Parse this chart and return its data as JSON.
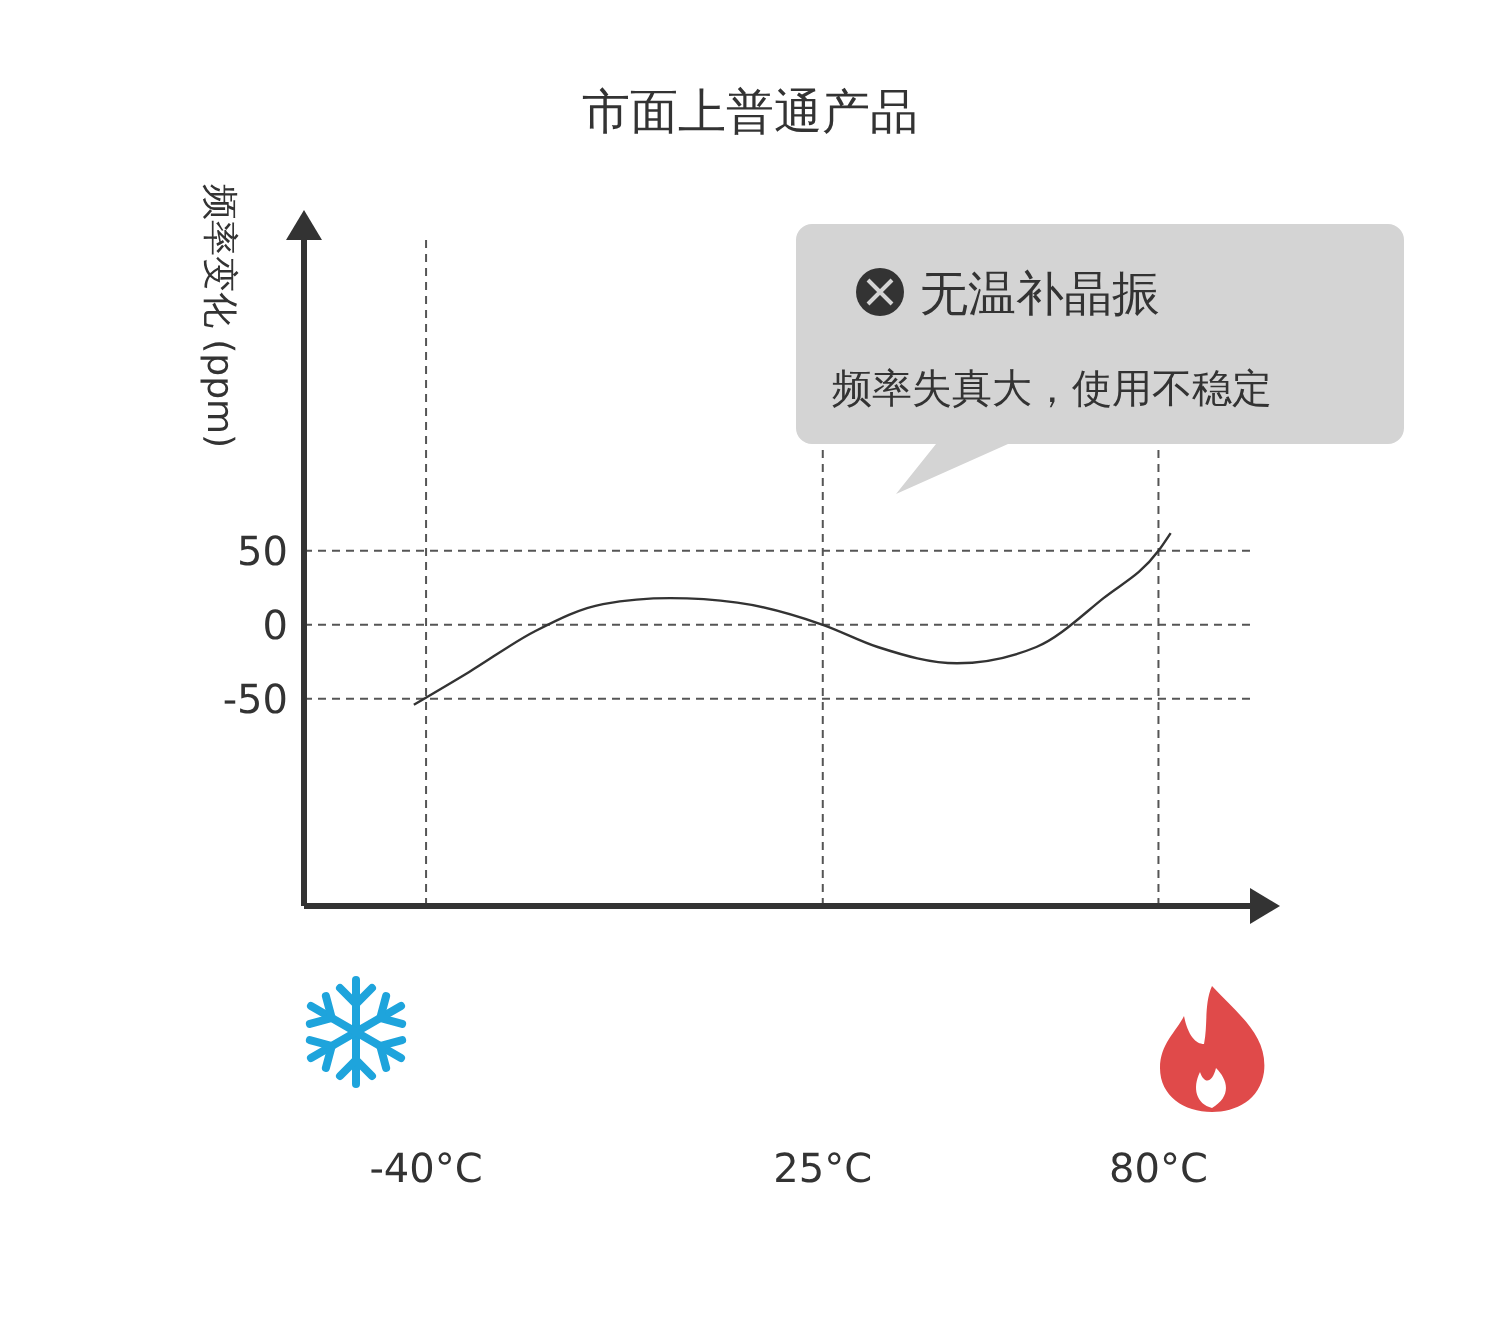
{
  "chart_data": {
    "type": "line",
    "title": "市面上普通产品",
    "ylabel": "频率变化 (ppm)",
    "annotations": [
      "无温补晶振",
      "频率失真大，使用不稳定"
    ],
    "x": [
      -42,
      -33,
      -22,
      -11,
      0,
      11,
      25,
      34,
      47,
      60,
      71,
      80,
      82
    ],
    "series": [
      {
        "color": "#333333",
        "values": [
          -54,
          -32,
          -4,
          14,
          18,
          15,
          0,
          -15,
          -26,
          -15,
          18,
          50,
          62
        ]
      }
    ],
    "xlim": [
      -60,
      95
    ],
    "ylim": [
      -190,
      260
    ],
    "xticks": [
      {
        "value": -40,
        "label": "-40°C"
      },
      {
        "value": 25,
        "label": "25°C"
      },
      {
        "value": 80,
        "label": "80°C"
      }
    ],
    "yticks": [
      -50,
      0,
      50
    ],
    "ref_lines": [
      {
        "axis": "y",
        "value": 50,
        "color": "#555555",
        "line_style": "dashed"
      },
      {
        "axis": "y",
        "value": 0,
        "color": "#555555",
        "line_style": "dashed"
      },
      {
        "axis": "y",
        "value": -50,
        "color": "#555555",
        "line_style": "dashed"
      },
      {
        "axis": "x",
        "value": -40,
        "color": "#555555",
        "line_style": "dashed"
      },
      {
        "axis": "x",
        "value": 25,
        "color": "#555555",
        "line_style": "dashed"
      },
      {
        "axis": "x",
        "value": 80,
        "color": "#555555",
        "line_style": "dashed"
      }
    ],
    "grid": false,
    "marker": "none",
    "line_style": "solid"
  }
}
